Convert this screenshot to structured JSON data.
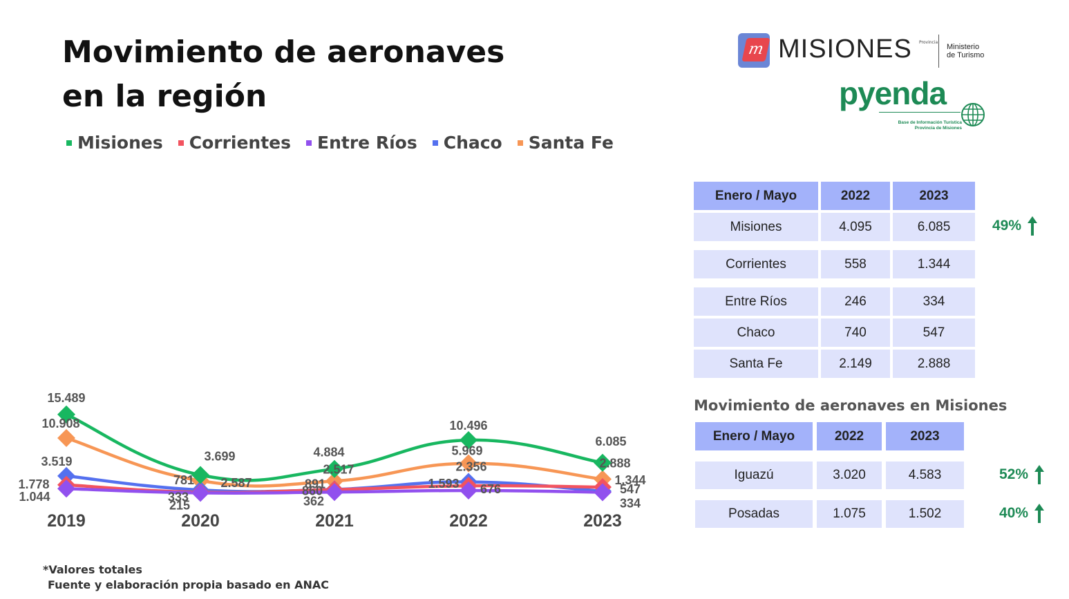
{
  "title_line1": "Movimiento de aeronaves",
  "title_line2": "en la región",
  "logos": {
    "misiones_mark": "m",
    "misiones_word": "MISIONES",
    "misiones_provincia": "Provincia",
    "ministerio": "Ministerio",
    "ministerio2": "de Turismo",
    "pyenda_word": "pyenda",
    "pyenda_sub1": "Base de Información Turística",
    "pyenda_sub2": "Provincia de Misiones"
  },
  "colors": {
    "Misiones": "#18b760",
    "Corrientes": "#f2535f",
    "Entre Ríos": "#9150ee",
    "Chaco": "#5470ef",
    "Santa Fe": "#f79655"
  },
  "chart_data": {
    "type": "line",
    "categories": [
      "2019",
      "2020",
      "2021",
      "2022",
      "2023"
    ],
    "series": [
      {
        "name": "Misiones",
        "values": [
          15489,
          3699,
          4884,
          10496,
          6085
        ],
        "labels": [
          "15.489",
          "3.699",
          "4.884",
          "10.496",
          "6.085"
        ]
      },
      {
        "name": "Corrientes",
        "values": [
          1778,
          333,
          860,
          1593,
          1344
        ],
        "labels": [
          "1.778",
          "333",
          "860",
          "1.593",
          "1.344"
        ]
      },
      {
        "name": "Entre Ríos",
        "values": [
          1044,
          215,
          362,
          676,
          334
        ],
        "labels": [
          "1.044",
          "215",
          "362",
          "676",
          "334"
        ]
      },
      {
        "name": "Chaco",
        "values": [
          3519,
          781,
          891,
          2356,
          547
        ],
        "labels": [
          "3.519",
          "781",
          "891",
          "2.356",
          "547"
        ]
      },
      {
        "name": "Santa Fe",
        "values": [
          10908,
          2587,
          2517,
          5969,
          2888
        ],
        "labels": [
          "10.908",
          "2.587",
          "2.517",
          "5.969",
          "2.888"
        ]
      }
    ],
    "ylim": [
      0,
      16500
    ],
    "grid": false,
    "legend": "top",
    "marker": "diamond"
  },
  "table_region": {
    "headers": [
      "Enero / Mayo",
      "2022",
      "2023"
    ],
    "rows": [
      [
        "Misiones",
        "4.095",
        "6.085"
      ],
      [
        "Corrientes",
        "558",
        "1.344"
      ],
      [
        "Entre Ríos",
        "246",
        "334"
      ],
      [
        "Chaco",
        "740",
        "547"
      ],
      [
        "Santa Fe",
        "2.149",
        "2.888"
      ]
    ],
    "growth": "49%"
  },
  "table_misiones": {
    "title": "Movimiento de aeronaves en Misiones",
    "headers": [
      "Enero / Mayo",
      "2022",
      "2023"
    ],
    "rows": [
      [
        "Iguazú",
        "3.020",
        "4.583",
        "52%"
      ],
      [
        "Posadas",
        "1.075",
        "1.502",
        "40%"
      ]
    ]
  },
  "notes": {
    "line1": "*Valores totales",
    "line2": "Fuente y elaboración propia basado en ANAC"
  }
}
